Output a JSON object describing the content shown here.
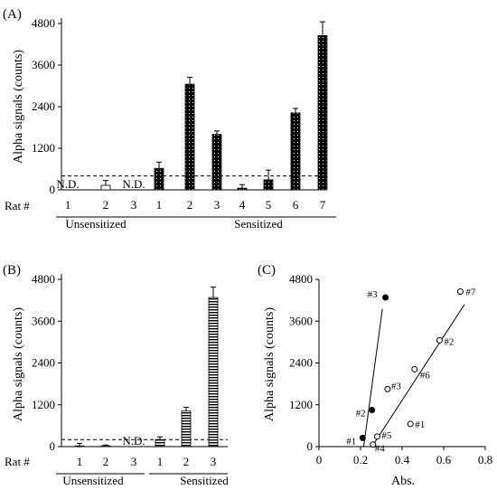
{
  "chart_data": [
    {
      "panel_label": "(A)",
      "type": "bar",
      "ylabel": "Alpha signals (counts)",
      "ylim": [
        0,
        4800
      ],
      "yticks": [
        "0",
        "1200",
        "2400",
        "3600",
        "4800"
      ],
      "x_row_label": "Rat #",
      "threshold": 400,
      "nd_label": "N.D.",
      "groups": [
        {
          "name": "Unsensitized",
          "fill": "white",
          "bars": [
            {
              "rat": "1",
              "value": null,
              "error": 0,
              "nd": true
            },
            {
              "rat": "2",
              "value": 130,
              "error": 140,
              "nd": false
            },
            {
              "rat": "3",
              "value": null,
              "error": 0,
              "nd": true
            }
          ]
        },
        {
          "name": "Sensitized",
          "fill": "dotted",
          "bars": [
            {
              "rat": "1",
              "value": 620,
              "error": 180,
              "nd": false
            },
            {
              "rat": "2",
              "value": 3050,
              "error": 200,
              "nd": false
            },
            {
              "rat": "3",
              "value": 1600,
              "error": 100,
              "nd": false
            },
            {
              "rat": "4",
              "value": 50,
              "error": 100,
              "nd": false
            },
            {
              "rat": "5",
              "value": 290,
              "error": 280,
              "nd": false
            },
            {
              "rat": "6",
              "value": 2220,
              "error": 130,
              "nd": false
            },
            {
              "rat": "7",
              "value": 4450,
              "error": 400,
              "nd": false
            }
          ]
        }
      ]
    },
    {
      "panel_label": "(B)",
      "type": "bar",
      "ylabel": "Alpha signals (counts)",
      "ylim": [
        0,
        4800
      ],
      "yticks": [
        "0",
        "1200",
        "2400",
        "3600",
        "4800"
      ],
      "x_row_label": "Rat #",
      "threshold": 200,
      "nd_label": "N.D.",
      "groups": [
        {
          "name": "Unsensitized",
          "fill": "white",
          "bars": [
            {
              "rat": "1",
              "value": 20,
              "error": 70,
              "nd": false
            },
            {
              "rat": "2",
              "value": 25,
              "error": 20,
              "nd": false
            },
            {
              "rat": "3",
              "value": null,
              "error": 0,
              "nd": true
            }
          ]
        },
        {
          "name": "Sensitized",
          "fill": "hlines",
          "bars": [
            {
              "rat": "1",
              "value": 200,
              "error": 80,
              "nd": false
            },
            {
              "rat": "2",
              "value": 1020,
              "error": 110,
              "nd": false
            },
            {
              "rat": "3",
              "value": 4280,
              "error": 300,
              "nd": false
            }
          ]
        }
      ]
    },
    {
      "panel_label": "(C)",
      "type": "scatter",
      "xlabel": "Abs.",
      "ylabel": "Alpha signals (counts)",
      "xlim": [
        0,
        0.8
      ],
      "ylim": [
        0,
        4800
      ],
      "xticks": [
        "0",
        "0.2",
        "0.4",
        "0.6",
        "0.8"
      ],
      "yticks": [
        "0",
        "1200",
        "2400",
        "3600",
        "4800"
      ],
      "series": [
        {
          "marker": "filled",
          "points": [
            {
              "label": "#1",
              "x": 0.21,
              "y": 250
            },
            {
              "label": "#2",
              "x": 0.255,
              "y": 1050
            },
            {
              "label": "#3",
              "x": 0.32,
              "y": 4280
            }
          ],
          "fit": {
            "x1": 0.215,
            "y1": 0,
            "x2": 0.305,
            "y2": 3950
          }
        },
        {
          "marker": "open",
          "points": [
            {
              "label": "#1",
              "x": 0.44,
              "y": 650
            },
            {
              "label": "#2",
              "x": 0.58,
              "y": 3050
            },
            {
              "label": "#3",
              "x": 0.33,
              "y": 1650
            },
            {
              "label": "#4",
              "x": 0.26,
              "y": 60
            },
            {
              "label": "#5",
              "x": 0.28,
              "y": 290
            },
            {
              "label": "#6",
              "x": 0.46,
              "y": 2220
            },
            {
              "label": "#7",
              "x": 0.68,
              "y": 4450
            }
          ],
          "fit": {
            "x1": 0.255,
            "y1": 0,
            "x2": 0.7,
            "y2": 4080
          }
        }
      ]
    }
  ]
}
